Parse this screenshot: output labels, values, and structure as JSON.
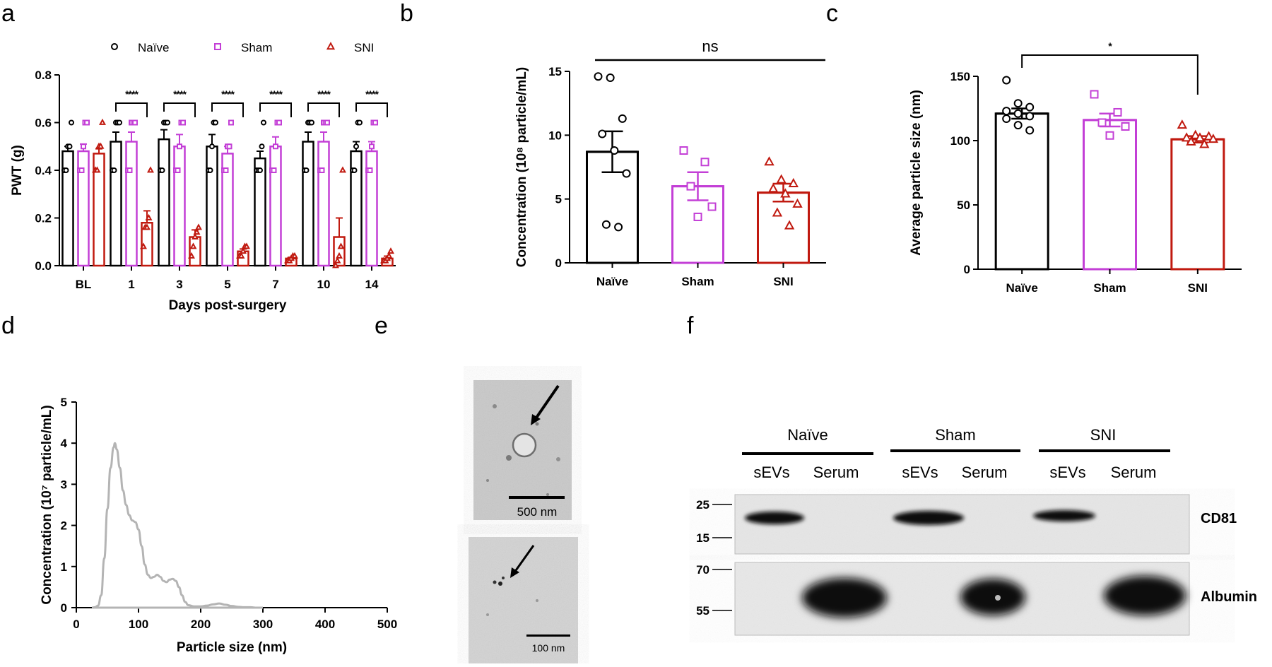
{
  "colors": {
    "naive": "#000000",
    "sham": "#c33fd6",
    "sni": "#c0190f",
    "nta_curve": "#b4b4b4"
  },
  "panel_letters": [
    "a",
    "b",
    "c",
    "d",
    "e",
    "f"
  ],
  "chart_data": [
    {
      "panel": "a",
      "type": "bar",
      "xlabel": "Days post-surgery",
      "ylabel": "PWT (g)",
      "ylim": [
        0,
        0.8
      ],
      "yticks": [
        "0.0",
        "0.2",
        "0.4",
        "0.6",
        "0.8"
      ],
      "categories": [
        "BL",
        "1",
        "3",
        "5",
        "7",
        "10",
        "14"
      ],
      "legend_position": "top",
      "series": [
        {
          "name": "Naïve",
          "values": [
            0.48,
            0.52,
            0.53,
            0.5,
            0.45,
            0.52,
            0.48
          ],
          "sem": [
            0.02,
            0.04,
            0.04,
            0.05,
            0.03,
            0.04,
            0.04
          ]
        },
        {
          "name": "Sham",
          "values": [
            0.48,
            0.52,
            0.5,
            0.47,
            0.5,
            0.52,
            0.48
          ],
          "sem": [
            0.03,
            0.04,
            0.05,
            0.03,
            0.04,
            0.04,
            0.04
          ]
        },
        {
          "name": "SNI",
          "values": [
            0.47,
            0.18,
            0.12,
            0.06,
            0.03,
            0.12,
            0.03
          ],
          "sem": [
            0.02,
            0.05,
            0.03,
            0.01,
            0.005,
            0.08,
            0.01
          ]
        }
      ],
      "points": {
        "Naïve": [
          [
            0.4,
            0.4,
            0.5,
            0.5,
            0.6
          ],
          [
            0.4,
            0.4,
            0.6,
            0.6,
            0.6
          ],
          [
            0.4,
            0.4,
            0.6,
            0.6,
            0.6
          ],
          [
            0.4,
            0.4,
            0.5,
            0.6,
            0.6
          ],
          [
            0.4,
            0.4,
            0.4,
            0.5,
            0.6
          ],
          [
            0.4,
            0.4,
            0.6,
            0.6,
            0.6
          ],
          [
            0.4,
            0.4,
            0.5,
            0.6,
            0.6
          ]
        ],
        "Sham": [
          [
            0.4,
            0.4,
            0.5,
            0.6,
            0.6
          ],
          [
            0.4,
            0.4,
            0.6,
            0.6,
            0.6
          ],
          [
            0.4,
            0.4,
            0.5,
            0.6,
            0.6
          ],
          [
            0.4,
            0.4,
            0.5,
            0.5,
            0.6
          ],
          [
            0.4,
            0.4,
            0.5,
            0.6,
            0.6
          ],
          [
            0.4,
            0.4,
            0.6,
            0.6,
            0.6
          ],
          [
            0.4,
            0.4,
            0.5,
            0.6,
            0.6
          ]
        ],
        "SNI": [
          [
            0.4,
            0.4,
            0.5,
            0.5,
            0.6
          ],
          [
            0.08,
            0.16,
            0.16,
            0.2,
            0.4
          ],
          [
            0.04,
            0.08,
            0.12,
            0.14,
            0.16
          ],
          [
            0.04,
            0.04,
            0.06,
            0.08,
            0.08
          ],
          [
            0.02,
            0.02,
            0.03,
            0.04,
            0.04
          ],
          [
            0.0,
            0.02,
            0.04,
            0.08,
            0.4
          ],
          [
            0.02,
            0.02,
            0.03,
            0.04,
            0.06
          ]
        ]
      },
      "significance": [
        "****",
        "****",
        "****",
        "****",
        "****",
        "****"
      ]
    },
    {
      "panel": "b",
      "type": "bar",
      "ylabel": "Concentration (10⁸ particle/mL)",
      "ylim": [
        0,
        15
      ],
      "yticks": [
        "0",
        "5",
        "10",
        "15"
      ],
      "categories": [
        "Naïve",
        "Sham",
        "SNI"
      ],
      "values": [
        8.7,
        6.0,
        5.5
      ],
      "sem": [
        1.6,
        1.1,
        0.7
      ],
      "points": [
        [
          14.6,
          14.5,
          11.3,
          10.1,
          8.8,
          7.0,
          3.0,
          2.8
        ],
        [
          8.8,
          7.9,
          6.0,
          4.4,
          3.6
        ],
        [
          7.9,
          6.5,
          6.2,
          5.8,
          5.4,
          4.6,
          3.9,
          2.9
        ]
      ],
      "significance": "ns"
    },
    {
      "panel": "c",
      "type": "bar",
      "ylabel": "Average particle size (nm)",
      "ylim": [
        0,
        150
      ],
      "yticks": [
        "0",
        "50",
        "100",
        "150"
      ],
      "categories": [
        "Naïve",
        "Sham",
        "SNI"
      ],
      "values": [
        121,
        116,
        101
      ],
      "sem": [
        4,
        5,
        2.5
      ],
      "points": [
        [
          147,
          129,
          126,
          123,
          121,
          119,
          117,
          112,
          108
        ],
        [
          136,
          122,
          114,
          111,
          104
        ],
        [
          112,
          104,
          103,
          102,
          102,
          101,
          99,
          97
        ]
      ],
      "significance": "*"
    },
    {
      "panel": "d",
      "type": "line",
      "xlabel": "Particle size (nm)",
      "ylabel": "Concentration (10⁷ particle/mL)",
      "xlim": [
        0,
        500
      ],
      "ylim": [
        0,
        5
      ],
      "xticks": [
        "0",
        "100",
        "200",
        "300",
        "400",
        "500"
      ],
      "yticks": [
        "0",
        "1",
        "2",
        "3",
        "4",
        "5"
      ],
      "x": [
        25,
        30,
        35,
        40,
        45,
        50,
        55,
        60,
        62,
        65,
        70,
        75,
        80,
        85,
        90,
        95,
        100,
        105,
        110,
        115,
        120,
        125,
        130,
        135,
        140,
        145,
        150,
        155,
        160,
        165,
        170,
        175,
        180,
        190,
        200,
        210,
        220,
        230,
        240,
        250,
        260,
        270,
        280,
        290,
        300
      ],
      "y": [
        0,
        0.01,
        0.05,
        0.3,
        1.2,
        2.4,
        3.4,
        3.9,
        4.0,
        3.85,
        3.4,
        2.85,
        2.5,
        2.25,
        2.12,
        2.08,
        1.9,
        1.5,
        1.05,
        0.8,
        0.72,
        0.75,
        0.8,
        0.75,
        0.65,
        0.62,
        0.68,
        0.7,
        0.65,
        0.5,
        0.3,
        0.14,
        0.06,
        0.03,
        0.03,
        0.05,
        0.08,
        0.1,
        0.07,
        0.04,
        0.02,
        0.01,
        0.01,
        0.0,
        0.0
      ]
    }
  ],
  "tem": {
    "scale_top": "500 nm",
    "scale_bottom": "100 nm"
  },
  "blot": {
    "groups": [
      "Naïve",
      "Sham",
      "SNI"
    ],
    "lanes": [
      "sEVs",
      "Serum",
      "sEVs",
      "Serum",
      "sEVs",
      "Serum"
    ],
    "markers_top": [
      "25",
      "15"
    ],
    "markers_bottom": [
      "70",
      "55"
    ],
    "proteins": [
      "CD81",
      "Albumin"
    ]
  }
}
